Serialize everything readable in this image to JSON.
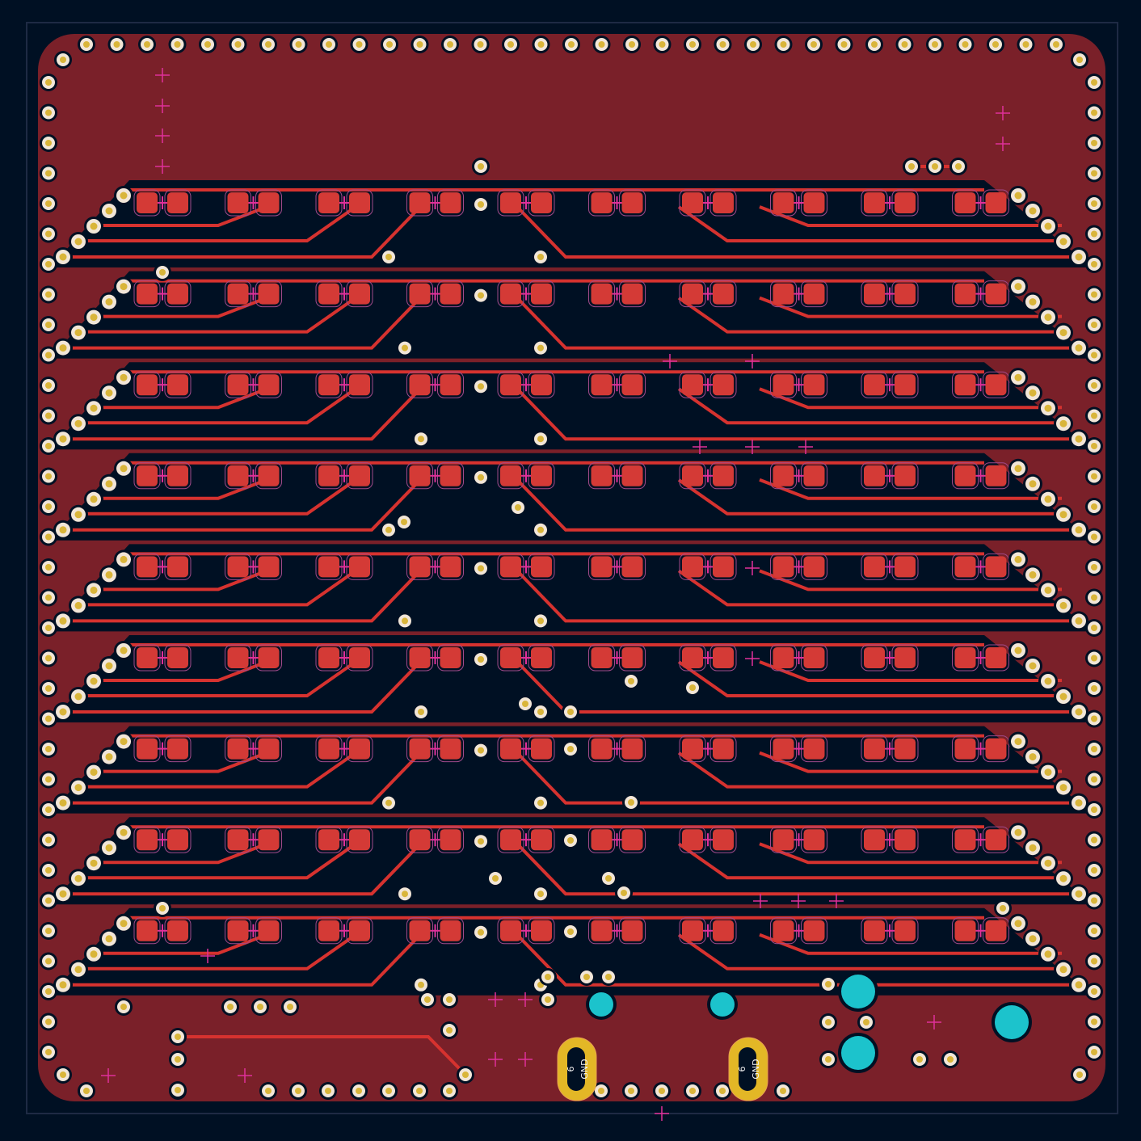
{
  "view": "pcb-layout",
  "colors": {
    "background": "#001023",
    "copper_fill": "#7a2029",
    "trace": "#d6322f",
    "pad": "#d43a36",
    "via_ring": "#f2e6d8",
    "via_hole": "#d9b53a",
    "mount_pad": "#e3b726",
    "large_via": "#1cc3cc",
    "marker": "#e0309a"
  },
  "connectors": [
    {
      "pin": "6",
      "net": "GND"
    },
    {
      "pin": "6",
      "net": "GND"
    }
  ],
  "led_rows": 9,
  "leds_per_row": 10
}
